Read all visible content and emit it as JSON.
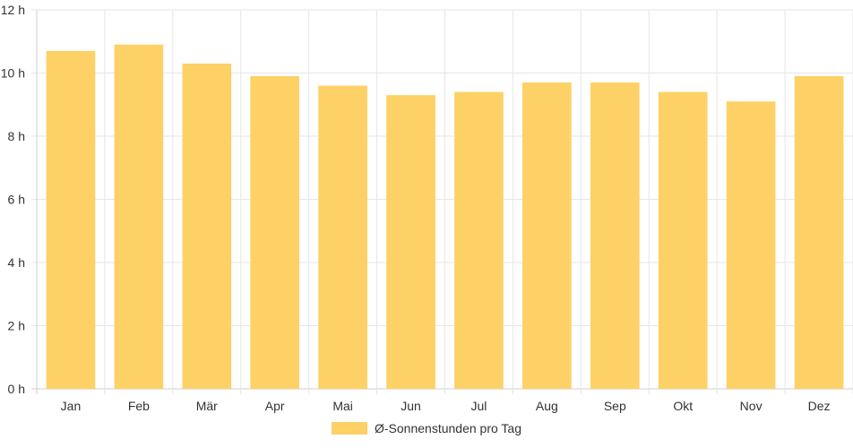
{
  "chart_data": {
    "type": "bar",
    "categories": [
      "Jan",
      "Feb",
      "Mär",
      "Apr",
      "Mai",
      "Jun",
      "Jul",
      "Aug",
      "Sep",
      "Okt",
      "Nov",
      "Dez"
    ],
    "series": [
      {
        "name": "Ø-Sonnenstunden pro Tag",
        "values": [
          10.7,
          10.9,
          10.3,
          9.9,
          9.6,
          9.3,
          9.4,
          9.7,
          9.7,
          9.4,
          9.1,
          9.9
        ],
        "color": "#fdd166"
      }
    ],
    "y_ticks": [
      "0 h",
      "2 h",
      "4 h",
      "6 h",
      "8 h",
      "10 h",
      "12 h"
    ],
    "ylim": [
      0,
      12
    ],
    "title": "",
    "xlabel": "",
    "ylabel": "",
    "grid": true,
    "legend_position": "bottom"
  }
}
